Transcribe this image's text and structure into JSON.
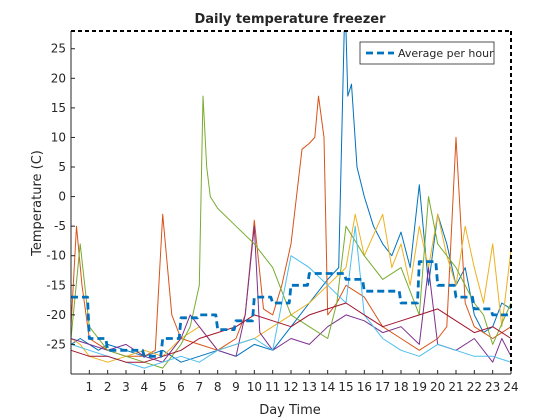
{
  "chart_data": {
    "type": "line",
    "title": "Daily temperature freezer",
    "xlabel": "Day Time",
    "ylabel": "Temperature (C)",
    "xlim": [
      0,
      24
    ],
    "ylim": [
      -30,
      28
    ],
    "xticks": [
      1,
      2,
      3,
      4,
      5,
      6,
      7,
      8,
      9,
      10,
      11,
      12,
      13,
      14,
      15,
      16,
      17,
      18,
      19,
      20,
      21,
      22,
      23,
      24
    ],
    "yticks": [
      -25,
      -20,
      -15,
      -10,
      -5,
      0,
      5,
      10,
      15,
      20,
      25
    ],
    "grid": false,
    "legend": {
      "location": "top-right",
      "entries": [
        "Average per hour"
      ]
    },
    "series": [
      {
        "name": "Average per hour",
        "style": "dashed",
        "color": "#0072BD",
        "x": [
          0,
          0.9,
          1,
          1.9,
          2,
          3.9,
          4,
          4.9,
          5,
          5.9,
          6,
          6.9,
          7,
          7.9,
          8,
          8.9,
          9,
          9.9,
          10,
          10.9,
          11,
          11.9,
          12,
          12.9,
          13,
          13.9,
          14,
          14.9,
          15,
          15.9,
          16,
          16.9,
          17,
          17.9,
          18,
          18.9,
          19,
          19.9,
          20,
          20.9,
          21,
          21.9,
          22,
          22.9,
          23,
          24
        ],
        "y": [
          -17,
          -17,
          -24,
          -24,
          -26,
          -26,
          -27,
          -27,
          -24,
          -24,
          -20.5,
          -20.5,
          -20,
          -20,
          -22.5,
          -22.5,
          -21,
          -21,
          -17,
          -17,
          -18,
          -18,
          -15,
          -15,
          -13,
          -13,
          -13,
          -13,
          -14,
          -14,
          -16,
          -16,
          -16,
          -16,
          -18,
          -18,
          -11,
          -11,
          -15,
          -15,
          -17,
          -17,
          -19,
          -19,
          -20,
          -20
        ]
      },
      {
        "color": "#0072BD",
        "x": [
          0,
          0.5,
          1,
          1.5,
          2,
          3,
          4,
          5,
          6,
          7,
          8,
          9,
          10,
          11,
          12,
          13,
          14,
          14.6,
          14.9,
          15,
          15.1,
          15.3,
          15.6,
          16,
          16.5,
          17,
          17.5,
          18,
          18.5,
          19,
          19.5,
          20,
          20.5,
          21,
          21.5,
          22,
          22.5,
          23,
          23.5,
          24
        ],
        "y": [
          -25,
          -24,
          -25,
          -26,
          -25,
          -26,
          -27,
          -26,
          -28,
          -27,
          -26,
          -27,
          -25,
          -26,
          -22,
          -18,
          -14,
          -12,
          28,
          28,
          17,
          19,
          5,
          0,
          -5,
          -8,
          -10,
          -6,
          -12,
          2,
          -15,
          -3,
          -8,
          -15,
          -12,
          -20,
          -23,
          -22,
          -18,
          -19
        ]
      },
      {
        "color": "#D95319",
        "x": [
          0,
          0.3,
          0.6,
          1,
          1.5,
          2,
          3,
          4,
          4.6,
          5,
          5.5,
          6,
          7,
          8,
          8.5,
          9,
          9.5,
          10,
          10.5,
          11,
          11.5,
          12,
          12.3,
          12.6,
          13,
          13.3,
          13.5,
          13.8,
          14,
          14.5,
          15,
          16,
          17,
          18,
          19,
          20,
          20.5,
          21,
          21.5,
          22,
          23,
          24
        ],
        "y": [
          -22,
          -5,
          -15,
          -24,
          -25,
          -26,
          -27,
          -27,
          -26,
          -3,
          -20,
          -24,
          -25,
          -26,
          -25,
          -24,
          -20,
          -4,
          -19,
          -20,
          -15,
          -8,
          0,
          8,
          9,
          10,
          17,
          10,
          -20,
          -18,
          -15,
          -17,
          -22,
          -24,
          -26,
          -24,
          -22,
          10,
          -18,
          -22,
          -24,
          -22
        ]
      },
      {
        "color": "#EDB120",
        "x": [
          0,
          0.5,
          1,
          2,
          3,
          4,
          5,
          6,
          7,
          8,
          9,
          10,
          11,
          12,
          13,
          14,
          15,
          15.5,
          16,
          17,
          17.5,
          18,
          18.5,
          19,
          19.5,
          20,
          20.5,
          21,
          21.5,
          22,
          22.5,
          23,
          23.5,
          24
        ],
        "y": [
          -24,
          -25,
          -27,
          -28,
          -27,
          -26,
          -27,
          -24,
          -22,
          -26,
          -25,
          -24,
          -22,
          -20,
          -18,
          -15,
          -12,
          -3,
          -10,
          -3,
          -12,
          -8,
          -15,
          -5,
          -12,
          -3,
          -10,
          -15,
          -5,
          -12,
          -18,
          -8,
          -22,
          -9
        ]
      },
      {
        "color": "#7E2F8E",
        "x": [
          0,
          1,
          2,
          3,
          4,
          5,
          5.5,
          6,
          6.5,
          7,
          8,
          9,
          9.5,
          10,
          10.3,
          11,
          12,
          13,
          14,
          15,
          16,
          17,
          18,
          19,
          19.5,
          20,
          21,
          22,
          23,
          23.5,
          24
        ],
        "y": [
          -24,
          -25,
          -26,
          -25,
          -27,
          -28,
          -26,
          -24,
          -20,
          -22,
          -26,
          -27,
          -20,
          -5,
          -23,
          -26,
          -24,
          -25,
          -22,
          -20,
          -21,
          -23,
          -22,
          -25,
          -12,
          -25,
          -26,
          -24,
          -28,
          -24,
          -27
        ]
      },
      {
        "color": "#77AC30",
        "x": [
          0,
          0.5,
          1,
          2,
          3,
          4,
          5,
          6,
          6.5,
          7,
          7.2,
          7.4,
          7.6,
          8,
          9,
          10,
          11,
          12,
          13,
          14,
          14.5,
          15,
          16,
          17,
          18,
          19,
          19.5,
          20,
          21,
          22,
          22.5,
          23,
          24
        ],
        "y": [
          -24,
          -8,
          -22,
          -26,
          -27,
          -28,
          -29,
          -25,
          -22,
          -15,
          17,
          5,
          0,
          -2,
          -5,
          -8,
          -12,
          -20,
          -22,
          -24,
          -18,
          -5,
          -10,
          -14,
          -12,
          -20,
          0,
          -8,
          -12,
          -18,
          -20,
          -25,
          -18
        ]
      },
      {
        "color": "#4DBEEE",
        "x": [
          0,
          1,
          2,
          3,
          4,
          5,
          6,
          7,
          8,
          9,
          10,
          11,
          12,
          13,
          14,
          15,
          15.5,
          16,
          17,
          18,
          19,
          20,
          21,
          22,
          23,
          24
        ],
        "y": [
          -25,
          -26,
          -27,
          -28,
          -29,
          -28,
          -27,
          -28,
          -26,
          -25,
          -24,
          -26,
          -10,
          -12,
          -15,
          -18,
          -5,
          -20,
          -24,
          -26,
          -27,
          -25,
          -26,
          -27,
          -27,
          -28
        ]
      },
      {
        "color": "#A2142F",
        "x": [
          0,
          1,
          2,
          3,
          4,
          5,
          6,
          7,
          8,
          9,
          10,
          11,
          12,
          13,
          14,
          15,
          16,
          17,
          18,
          19,
          20,
          21,
          22,
          23,
          24
        ],
        "y": [
          -26,
          -27,
          -27,
          -28,
          -28,
          -27,
          -26,
          -24,
          -23,
          -22,
          -20,
          -21,
          -22,
          -20,
          -19,
          -18,
          -20,
          -22,
          -21,
          -20,
          -19,
          -21,
          -23,
          -22,
          -24
        ]
      }
    ]
  }
}
